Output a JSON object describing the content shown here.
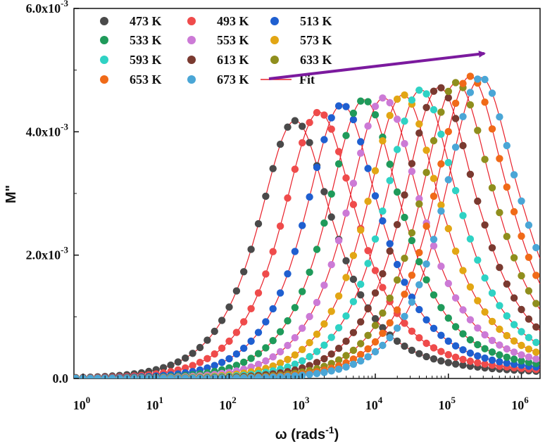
{
  "chart_data": {
    "type": "scatter",
    "title": "",
    "xlabel": "ω (rads",
    "xlabel_sup": "-1",
    "xlabel_close": ")",
    "ylabel": "M\"",
    "x_scale": "log",
    "xlim": [
      0.75,
      1800000
    ],
    "ylim": [
      0,
      0.006
    ],
    "x_ticks": [
      {
        "value": 1,
        "base": "10",
        "exp": "0"
      },
      {
        "value": 10,
        "base": "10",
        "exp": "1"
      },
      {
        "value": 100,
        "base": "10",
        "exp": "2"
      },
      {
        "value": 1000,
        "base": "10",
        "exp": "3"
      },
      {
        "value": 10000,
        "base": "10",
        "exp": "4"
      },
      {
        "value": 100000,
        "base": "10",
        "exp": "5"
      },
      {
        "value": 1000000,
        "base": "10",
        "exp": "6"
      }
    ],
    "y_ticks": [
      {
        "value": 0,
        "label": "0.0",
        "exp": ""
      },
      {
        "value": 0.002,
        "label": "2.0x10",
        "exp": "-3"
      },
      {
        "value": 0.004,
        "label": "4.0x10",
        "exp": "-3"
      },
      {
        "value": 0.006,
        "label": "6.0x10",
        "exp": "-3"
      }
    ],
    "legend_placement": "top-left",
    "fit_label": "Fit",
    "fit_color": "#e8202a",
    "arrow_color": "#7b1a9e",
    "series": [
      {
        "name": "473 K",
        "color": "#4a4a4a",
        "peak_omega": 800,
        "peak_value": 0.00418,
        "tail": 0.00028
      },
      {
        "name": "493 K",
        "color": "#ef4b4b",
        "peak_omega": 1700,
        "peak_value": 0.00432,
        "tail": 0.0003
      },
      {
        "name": "513 K",
        "color": "#1f5fd0",
        "peak_omega": 3500,
        "peak_value": 0.00444,
        "tail": 0.00032
      },
      {
        "name": "533 K",
        "color": "#1f9a5a",
        "peak_omega": 7000,
        "peak_value": 0.00452,
        "tail": 0.00034
      },
      {
        "name": "553 K",
        "color": "#cc7ad6",
        "peak_omega": 13000,
        "peak_value": 0.00455,
        "tail": 0.00036
      },
      {
        "name": "573 K",
        "color": "#e2a614",
        "peak_omega": 24000,
        "peak_value": 0.0046,
        "tail": 0.00038
      },
      {
        "name": "593 K",
        "color": "#2fd2c4",
        "peak_omega": 42000,
        "peak_value": 0.00468,
        "tail": 0.0004
      },
      {
        "name": "613 K",
        "color": "#7a3a30",
        "peak_omega": 75000,
        "peak_value": 0.00472,
        "tail": 0.00042
      },
      {
        "name": "633 K",
        "color": "#8f8e1d",
        "peak_omega": 130000,
        "peak_value": 0.0048,
        "tail": 0.00044
      },
      {
        "name": "653 K",
        "color": "#f06a18",
        "peak_omega": 200000,
        "peak_value": 0.0049,
        "tail": 0.00046
      },
      {
        "name": "673 K",
        "color": "#4aa6d6",
        "peak_omega": 280000,
        "peak_value": 0.00488,
        "tail": 0.00048
      }
    ]
  }
}
